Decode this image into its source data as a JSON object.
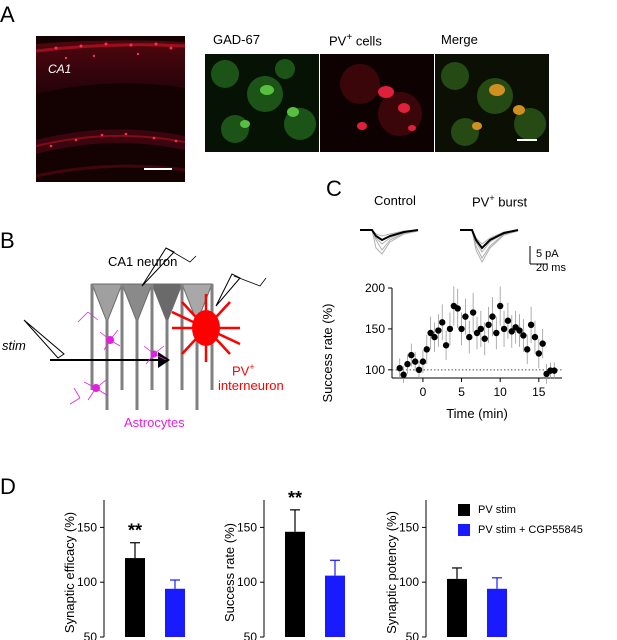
{
  "panels": {
    "a": "A",
    "b": "B",
    "c": "C",
    "d": "D"
  },
  "panel_a": {
    "region_label": "CA1",
    "channels": [
      "GAD-67",
      "PV",
      "Merge"
    ],
    "pv_superscript": "+",
    "pv_suffix": "cells",
    "colors": {
      "red": "#e0203a",
      "green": "#3c8a2a"
    }
  },
  "panel_b": {
    "neuron_label": "CA1 neuron",
    "stim_label": "stim",
    "pv_label": "PV",
    "pv_superscript": "+",
    "interneuron_label": "interneuron",
    "astrocytes_label": "Astrocytes",
    "colors": {
      "pv": "#ff0000",
      "astro": "#e020e0"
    }
  },
  "panel_c": {
    "trace_labels": [
      "Control",
      "PV"
    ],
    "pv_superscript": "+",
    "burst_suffix": "burst",
    "scale_y": "5 pA",
    "scale_x": "20 ms"
  },
  "chart_data": [
    {
      "type": "scatter",
      "panel": "C",
      "xlabel": "Time (min)",
      "ylabel": "Success rate (%)",
      "xlim": [
        -4,
        18
      ],
      "ylim": [
        90,
        200
      ],
      "xticks": [
        0,
        5,
        10,
        15
      ],
      "yticks": [
        100,
        150,
        200
      ],
      "baseline": 100,
      "x": [
        -3,
        -2.5,
        -2,
        -1.5,
        -1,
        -0.5,
        0,
        0.5,
        1,
        1.5,
        2,
        2.5,
        3,
        3.5,
        4,
        4.5,
        5,
        5.5,
        6,
        6.5,
        7,
        7.5,
        8,
        8.5,
        9,
        9.5,
        10,
        10.5,
        11,
        11.5,
        12,
        12.5,
        13,
        13.5,
        14,
        14.5,
        15,
        15.5,
        16,
        16.5,
        17
      ],
      "y": [
        102,
        94,
        107,
        118,
        110,
        100,
        110,
        125,
        145,
        140,
        148,
        158,
        130,
        150,
        178,
        175,
        150,
        165,
        140,
        170,
        145,
        150,
        138,
        155,
        165,
        145,
        178,
        150,
        160,
        147,
        152,
        148,
        142,
        125,
        155,
        140,
        120,
        132,
        95,
        99,
        99
      ],
      "yerr": [
        12,
        10,
        12,
        14,
        12,
        10,
        14,
        18,
        20,
        18,
        20,
        22,
        18,
        20,
        24,
        24,
        20,
        22,
        20,
        24,
        20,
        22,
        20,
        22,
        24,
        20,
        24,
        22,
        22,
        20,
        20,
        20,
        20,
        18,
        22,
        20,
        18,
        18,
        12,
        10,
        10
      ]
    },
    {
      "type": "bar",
      "panel": "D",
      "ylabel": "Synaptic efficacy (%)",
      "ylim": [
        50,
        175
      ],
      "yticks": [
        50,
        100,
        150
      ],
      "categories": [
        "PV stim",
        "PV stim + CGP55845"
      ],
      "values": [
        122,
        94
      ],
      "errors": [
        14,
        8
      ],
      "annotation": "**"
    },
    {
      "type": "bar",
      "panel": "D",
      "ylabel": "Success rate (%)",
      "ylim": [
        50,
        175
      ],
      "yticks": [
        50,
        100,
        150
      ],
      "categories": [
        "PV stim",
        "PV stim + CGP55845"
      ],
      "values": [
        146,
        106
      ],
      "errors": [
        20,
        14
      ],
      "annotation": "**"
    },
    {
      "type": "bar",
      "panel": "D",
      "ylabel": "Synaptic potency (%)",
      "ylim": [
        50,
        175
      ],
      "yticks": [
        50,
        100,
        150
      ],
      "categories": [
        "PV stim",
        "PV stim + CGP55845"
      ],
      "values": [
        103,
        94
      ],
      "errors": [
        10,
        10
      ],
      "annotation": ""
    }
  ],
  "legend": {
    "items": [
      "PV stim",
      "PV stim + CGP55845"
    ],
    "colors": [
      "#000000",
      "#1a1aff"
    ]
  }
}
